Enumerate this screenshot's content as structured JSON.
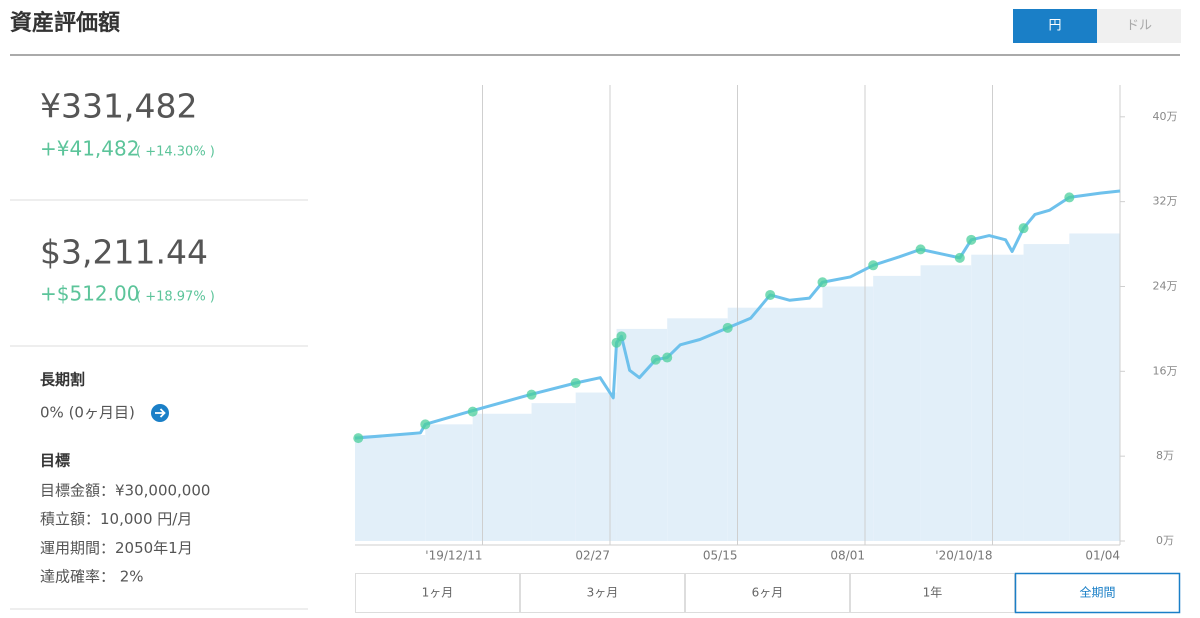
{
  "header": {
    "title": "資産評価額",
    "currency_toggle": [
      "円",
      "ドル"
    ],
    "selected_currency": 0
  },
  "summary": {
    "yen": {
      "value": "¥331,482",
      "change": "+¥41,482",
      "change_pct": "( +14.30% )"
    },
    "usd": {
      "value": "$3,211.44",
      "change": "+$512.00",
      "change_pct": "( +18.97% )"
    }
  },
  "discount": {
    "label": "長期割",
    "value": "0% (0ヶ月目)"
  },
  "goal": {
    "label": "目標",
    "lines": [
      "目標金額：¥30,000,000",
      "積立額：10,000 円/月",
      "運用期間：2050年1月",
      "達成確率： 2%"
    ]
  },
  "chart_data": {
    "type": "line",
    "xlim": [
      "2019-09-24",
      "2021-01-04"
    ],
    "ylim": [
      0,
      43
    ],
    "xticks": [
      {
        "value": "2019-12-11",
        "label": "'19/12/11"
      },
      {
        "value": "2020-02-27",
        "label": "02/27"
      },
      {
        "value": "2020-05-15",
        "label": "05/15"
      },
      {
        "value": "2020-08-01",
        "label": "08/01"
      },
      {
        "value": "2020-10-18",
        "label": "'20/10/18"
      },
      {
        "value": "2021-01-04",
        "label": "01/04"
      }
    ],
    "yticks": [
      {
        "value": 0,
        "label": "0万"
      },
      {
        "value": 8,
        "label": "8万"
      },
      {
        "value": 16,
        "label": "16万"
      },
      {
        "value": 24,
        "label": "24万"
      },
      {
        "value": 32,
        "label": "32万"
      },
      {
        "value": 40,
        "label": "40万"
      }
    ],
    "grid": true,
    "series": [
      {
        "style": "step-area",
        "color": "#e2eff9",
        "x": [
          "2019-09-24",
          "2019-11-06",
          "2019-12-05",
          "2020-01-10",
          "2020-02-06",
          "2020-03-02",
          "2020-04-02",
          "2020-05-09",
          "2020-07-06",
          "2020-08-06",
          "2020-09-04",
          "2020-10-05",
          "2020-11-06",
          "2020-12-04"
        ],
        "values": [
          10,
          11,
          12,
          13,
          14,
          20,
          21,
          22,
          24,
          25,
          26,
          27,
          28,
          29
        ]
      },
      {
        "style": "line",
        "color": "#6ec1ec",
        "x": [
          "2019-09-24",
          "2019-11-03",
          "2019-11-06",
          "2019-12-03",
          "2020-01-09",
          "2020-02-06",
          "2020-02-21",
          "2020-02-29",
          "2020-03-02",
          "2020-03-05",
          "2020-03-10",
          "2020-03-16",
          "2020-03-26",
          "2020-04-02",
          "2020-04-10",
          "2020-04-22",
          "2020-05-09",
          "2020-05-23",
          "2020-06-04",
          "2020-06-16",
          "2020-06-28",
          "2020-07-06",
          "2020-07-23",
          "2020-08-06",
          "2020-08-22",
          "2020-09-04",
          "2020-09-19",
          "2020-09-28",
          "2020-10-05",
          "2020-10-16",
          "2020-10-26",
          "2020-10-30",
          "2020-11-06",
          "2020-11-13",
          "2020-11-22",
          "2020-12-04",
          "2020-12-23",
          "2021-01-04"
        ],
        "values": [
          9.7,
          10.2,
          11.0,
          12.2,
          13.8,
          14.9,
          15.4,
          13.5,
          18.7,
          19.3,
          16.1,
          15.4,
          17.1,
          17.3,
          18.5,
          19.0,
          20.1,
          21.0,
          23.2,
          22.7,
          22.9,
          24.4,
          24.9,
          26.0,
          26.8,
          27.5,
          27.0,
          26.7,
          28.4,
          28.8,
          28.4,
          27.3,
          29.5,
          30.8,
          31.2,
          32.4,
          32.8,
          33.0
        ]
      },
      {
        "style": "markers",
        "color": "#4ccf9c",
        "x": [
          "2019-09-26",
          "2019-11-06",
          "2019-12-05",
          "2020-01-10",
          "2020-02-06",
          "2020-03-02",
          "2020-03-05",
          "2020-03-26",
          "2020-04-02",
          "2020-05-09",
          "2020-06-04",
          "2020-07-06",
          "2020-08-06",
          "2020-09-04",
          "2020-09-28",
          "2020-10-05",
          "2020-11-06",
          "2020-12-04"
        ],
        "values": [
          9.7,
          11.0,
          12.2,
          13.8,
          14.9,
          18.7,
          19.3,
          17.1,
          17.3,
          20.1,
          23.2,
          24.4,
          26.0,
          27.5,
          26.7,
          28.4,
          29.5,
          32.4
        ]
      }
    ]
  },
  "range_buttons": {
    "labels": [
      "1ヶ月",
      "3ヶ月",
      "6ヶ月",
      "1年",
      "全期間"
    ],
    "selected": 4
  }
}
